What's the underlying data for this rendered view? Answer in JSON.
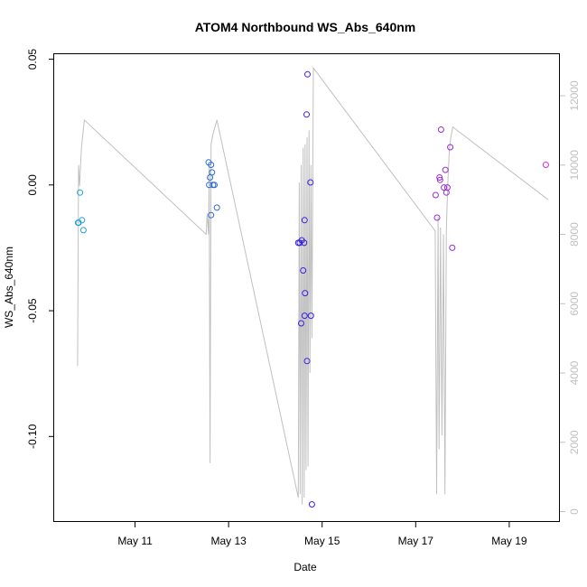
{
  "chart_data": {
    "type": "scatter",
    "title": "ATOM4 Northbound WS_Abs_640nm",
    "xlabel": "Date",
    "ylabel": "WS_Abs_640nm",
    "xlim": [
      "2016-05-09T06:30",
      "2016-05-20T02:00"
    ],
    "ylim": [
      -0.134,
      0.052
    ],
    "y2lim": [
      -300,
      13200
    ],
    "x_ticks": [
      {
        "at": "2016-05-11T00:00",
        "label": "May 11"
      },
      {
        "at": "2016-05-13T00:00",
        "label": "May 13"
      },
      {
        "at": "2016-05-15T00:00",
        "label": "May 15"
      },
      {
        "at": "2016-05-17T00:00",
        "label": "May 17"
      },
      {
        "at": "2016-05-19T00:00",
        "label": "May 19"
      }
    ],
    "y_ticks": [
      {
        "at": 0.05,
        "label": "0.05"
      },
      {
        "at": 0.0,
        "label": "0.00"
      },
      {
        "at": -0.05,
        "label": "-0.05"
      },
      {
        "at": -0.1,
        "label": "-0.10"
      }
    ],
    "y2_ticks": [
      {
        "at": 0,
        "label": "0"
      },
      {
        "at": 2000,
        "label": "2000"
      },
      {
        "at": 4000,
        "label": "4000"
      },
      {
        "at": 6000,
        "label": "6000"
      },
      {
        "at": 8000,
        "label": "8000"
      },
      {
        "at": 10000,
        "label": "10000"
      },
      {
        "at": 12000,
        "label": "12000"
      }
    ],
    "grid": false,
    "points": [
      {
        "x": "2016-05-09T19:00",
        "y": -0.015,
        "color": "#1ea3d8"
      },
      {
        "x": "2016-05-09T19:45",
        "y": -0.003,
        "color": "#1ea3d8"
      },
      {
        "x": "2016-05-09T20:45",
        "y": -0.014,
        "color": "#1ea3d8"
      },
      {
        "x": "2016-05-09T21:30",
        "y": -0.018,
        "color": "#1ea3d8"
      },
      {
        "x": "2016-05-09T18:45",
        "y": -0.015,
        "color": "#1ea3d8"
      },
      {
        "x": "2016-05-12T13:45",
        "y": 0.009,
        "color": "#2b6ad8"
      },
      {
        "x": "2016-05-12T14:30",
        "y": 0.003,
        "color": "#2b6ad8"
      },
      {
        "x": "2016-05-12T14:00",
        "y": 0.0,
        "color": "#2b6ad8"
      },
      {
        "x": "2016-05-12T15:00",
        "y": 0.008,
        "color": "#2b6ad8"
      },
      {
        "x": "2016-05-12T15:30",
        "y": 0.005,
        "color": "#2b6ad8"
      },
      {
        "x": "2016-05-12T16:00",
        "y": 0.0,
        "color": "#2b6ad8"
      },
      {
        "x": "2016-05-12T16:45",
        "y": 0.0,
        "color": "#2b6ad8"
      },
      {
        "x": "2016-05-12T15:00",
        "y": -0.012,
        "color": "#2b6ad8"
      },
      {
        "x": "2016-05-12T18:00",
        "y": -0.009,
        "color": "#2b6ad8"
      },
      {
        "x": "2016-05-14T11:45",
        "y": -0.023,
        "color": "#3a22e0"
      },
      {
        "x": "2016-05-14T12:30",
        "y": -0.023,
        "color": "#3a22e0"
      },
      {
        "x": "2016-05-14T13:30",
        "y": -0.022,
        "color": "#3a22e0"
      },
      {
        "x": "2016-05-14T14:15",
        "y": -0.034,
        "color": "#3a22e0"
      },
      {
        "x": "2016-05-14T13:15",
        "y": -0.055,
        "color": "#3a22e0"
      },
      {
        "x": "2016-05-14T14:45",
        "y": -0.023,
        "color": "#3a22e0"
      },
      {
        "x": "2016-05-14T15:00",
        "y": -0.014,
        "color": "#3a22e0"
      },
      {
        "x": "2016-05-14T15:15",
        "y": -0.043,
        "color": "#3a22e0"
      },
      {
        "x": "2016-05-14T15:00",
        "y": -0.052,
        "color": "#3a22e0"
      },
      {
        "x": "2016-05-14T16:00",
        "y": 0.028,
        "color": "#3a22e0"
      },
      {
        "x": "2016-05-14T16:30",
        "y": 0.044,
        "color": "#3a22e0"
      },
      {
        "x": "2016-05-14T16:15",
        "y": -0.07,
        "color": "#3a22e0"
      },
      {
        "x": "2016-05-14T18:00",
        "y": 0.001,
        "color": "#3a22e0"
      },
      {
        "x": "2016-05-14T18:15",
        "y": -0.052,
        "color": "#3a22e0"
      },
      {
        "x": "2016-05-14T18:45",
        "y": -0.127,
        "color": "#3a22e0"
      },
      {
        "x": "2016-05-17T10:15",
        "y": -0.004,
        "color": "#9a2ad4"
      },
      {
        "x": "2016-05-17T11:00",
        "y": -0.013,
        "color": "#9a2ad4"
      },
      {
        "x": "2016-05-17T12:15",
        "y": 0.003,
        "color": "#9a2ad4"
      },
      {
        "x": "2016-05-17T12:30",
        "y": 0.002,
        "color": "#9a2ad4"
      },
      {
        "x": "2016-05-17T13:00",
        "y": 0.022,
        "color": "#9a2ad4"
      },
      {
        "x": "2016-05-17T14:30",
        "y": -0.001,
        "color": "#9a2ad4"
      },
      {
        "x": "2016-05-17T15:15",
        "y": 0.006,
        "color": "#9a2ad4"
      },
      {
        "x": "2016-05-17T15:45",
        "y": -0.003,
        "color": "#9a2ad4"
      },
      {
        "x": "2016-05-17T16:15",
        "y": -0.001,
        "color": "#9a2ad4"
      },
      {
        "x": "2016-05-17T17:45",
        "y": 0.015,
        "color": "#9a2ad4"
      },
      {
        "x": "2016-05-17T18:45",
        "y": -0.025,
        "color": "#9a2ad4"
      },
      {
        "x": "2016-05-19T18:45",
        "y": 0.008,
        "color": "#d42ad0"
      }
    ],
    "line_y2": {
      "color": "#c0c0c0",
      "points": [
        [
          "2016-05-09T18:30",
          4200
        ],
        [
          "2016-05-09T19:00",
          10000
        ],
        [
          "2016-05-09T19:30",
          9400
        ],
        [
          "2016-05-09T20:30",
          10500
        ],
        [
          "2016-05-09T22:00",
          11300
        ],
        [
          "2016-05-12T12:30",
          8000
        ],
        [
          "2016-05-12T13:00",
          8600
        ],
        [
          "2016-05-12T13:45",
          8000
        ],
        [
          "2016-05-12T14:00",
          10000
        ],
        [
          "2016-05-12T14:30",
          1400
        ],
        [
          "2016-05-12T15:00",
          10600
        ],
        [
          "2016-05-12T16:00",
          10900
        ],
        [
          "2016-05-12T18:00",
          11300
        ],
        [
          "2016-05-14T11:00",
          600
        ],
        [
          "2016-05-14T11:45",
          400
        ],
        [
          "2016-05-14T12:15",
          9500
        ],
        [
          "2016-05-14T12:45",
          500
        ],
        [
          "2016-05-14T13:15",
          10000
        ],
        [
          "2016-05-14T13:45",
          200
        ],
        [
          "2016-05-14T14:15",
          10500
        ],
        [
          "2016-05-14T14:45",
          400
        ],
        [
          "2016-05-14T15:15",
          10600
        ],
        [
          "2016-05-14T15:45",
          1200
        ],
        [
          "2016-05-14T16:15",
          10800
        ],
        [
          "2016-05-14T16:45",
          1300
        ],
        [
          "2016-05-14T17:15",
          11000
        ],
        [
          "2016-05-14T17:45",
          4000
        ],
        [
          "2016-05-14T18:15",
          10000
        ],
        [
          "2016-05-14T18:45",
          5000
        ],
        [
          "2016-05-14T19:30",
          12800
        ],
        [
          "2016-05-17T10:00",
          8100
        ],
        [
          "2016-05-17T10:45",
          500
        ],
        [
          "2016-05-17T11:30",
          8500
        ],
        [
          "2016-05-17T12:00",
          1800
        ],
        [
          "2016-05-17T12:45",
          8200
        ],
        [
          "2016-05-17T13:30",
          2200
        ],
        [
          "2016-05-17T14:15",
          8000
        ],
        [
          "2016-05-17T15:00",
          500
        ],
        [
          "2016-05-17T15:45",
          8200
        ],
        [
          "2016-05-17T16:30",
          9500
        ],
        [
          "2016-05-17T17:15",
          10400
        ],
        [
          "2016-05-17T18:00",
          10800
        ],
        [
          "2016-05-17T19:00",
          11100
        ],
        [
          "2016-05-19T20:00",
          9000
        ]
      ]
    }
  }
}
